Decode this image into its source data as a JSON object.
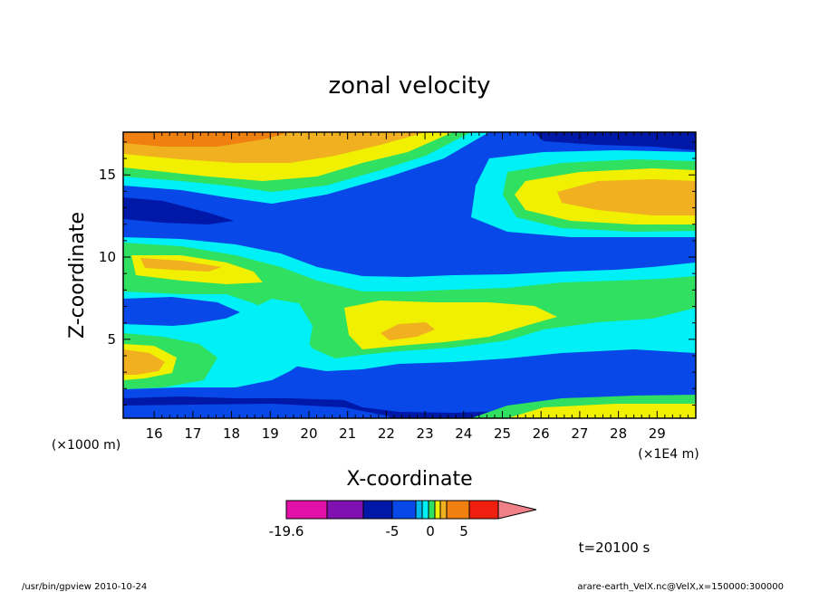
{
  "chart_data": {
    "type": "heatmap",
    "title": "zonal velocity",
    "xlabel": "X-coordinate",
    "ylabel": "Z-coordinate",
    "x_unit_left": "(×1000 m)",
    "x_unit_right": "(×1E4 m)",
    "x_ticks": [
      "16",
      "17",
      "18",
      "19",
      "20",
      "21",
      "22",
      "23",
      "24",
      "25",
      "26",
      "27",
      "28",
      "29"
    ],
    "y_ticks": [
      "5",
      "10",
      "15"
    ],
    "xlim": [
      15.2,
      30.0
    ],
    "ylim": [
      0.2,
      17.6
    ],
    "time_label": "t=20100 s",
    "colorbar": {
      "labels": [
        "-19.6",
        "-5",
        "0",
        "5"
      ],
      "colors": [
        "#e010a8",
        "#8010b0",
        "#0018a8",
        "#0848e8",
        "#00b8f0",
        "#00f0f8",
        "#30e060",
        "#f0f000",
        "#f0b020",
        "#f08010",
        "#f02010",
        "#f08088"
      ]
    }
  },
  "footer": {
    "left": "/usr/bin/gpview   2010-10-24",
    "right": "arare-earth_VelX.nc@VelX,x=150000:300000"
  }
}
